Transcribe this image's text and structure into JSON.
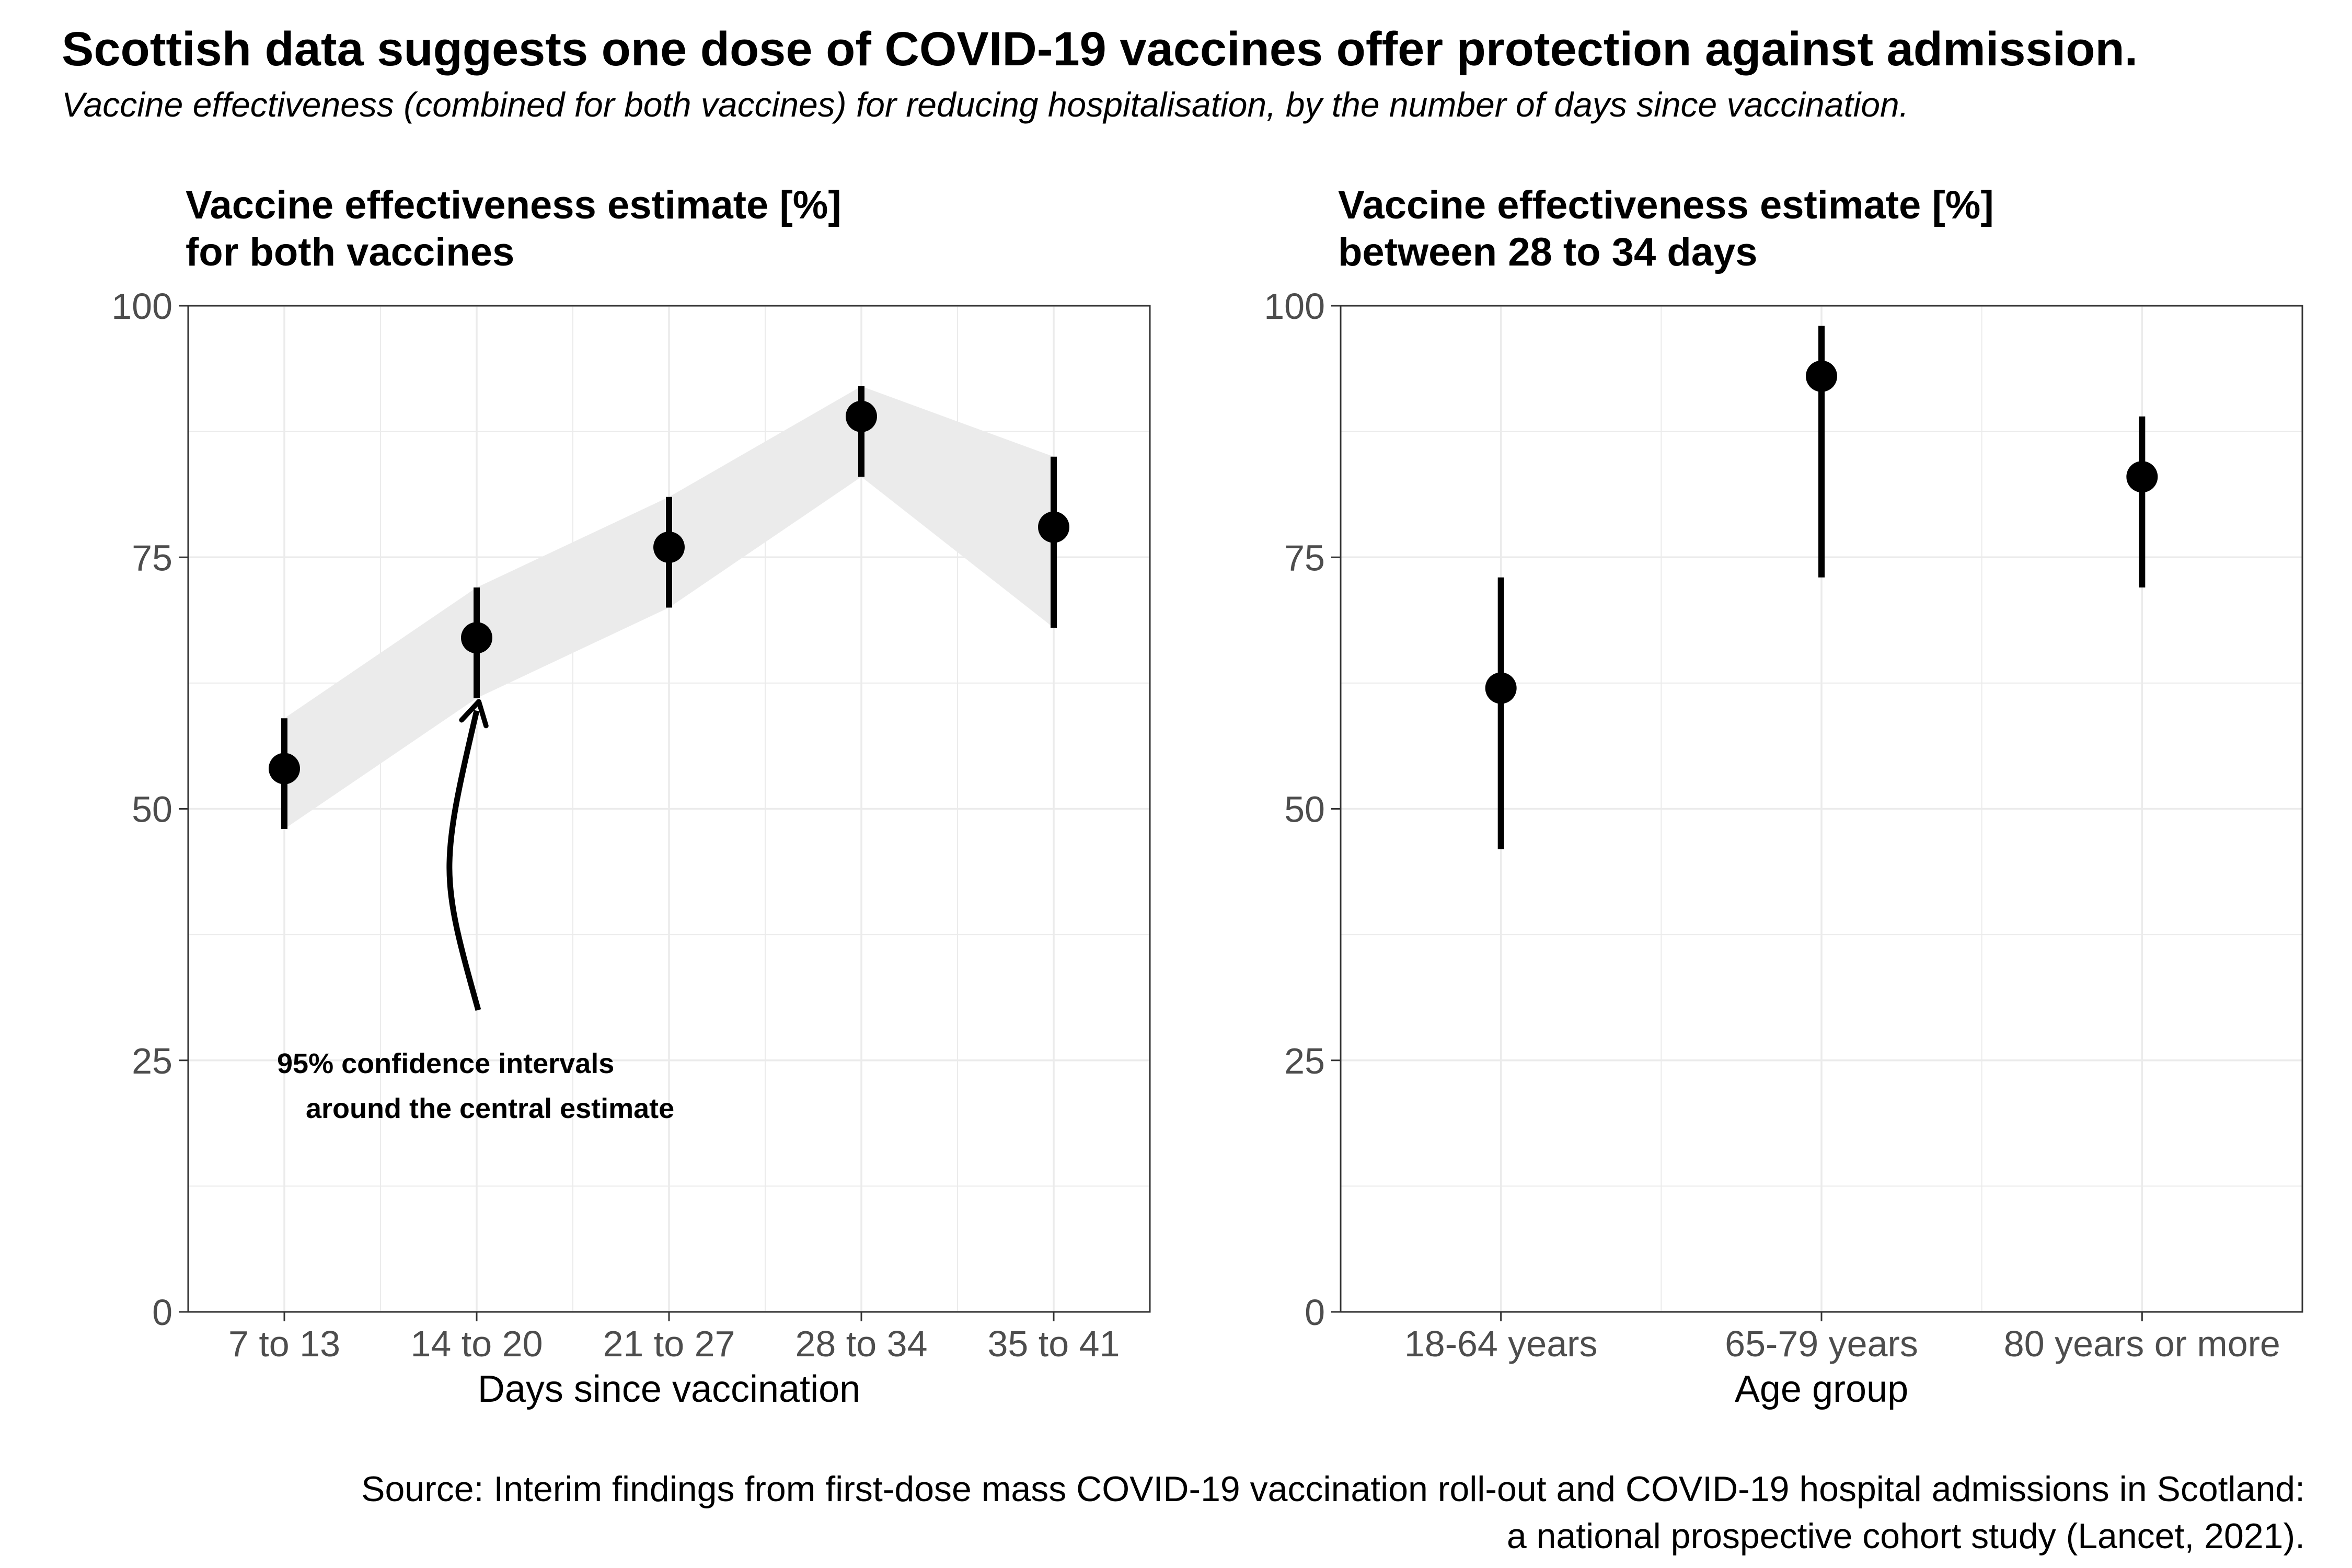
{
  "title": "Scottish data suggests one dose of COVID-19 vaccines offer protection against admission.",
  "subtitle": "Vaccine effectiveness (combined for both vaccines) for reducing hospitalisation, by the number of days since vaccination.",
  "source": {
    "line1": "Source: Interim findings from first-dose mass COVID-19 vaccination roll-out and COVID-19 hospital admissions in Scotland:",
    "line2": "a national prospective cohort study (Lancet, 2021)."
  },
  "chart_data": [
    {
      "type": "scatter",
      "title_lines": [
        "Vaccine effectiveness estimate [%]",
        "for both vaccines"
      ],
      "xlabel": "Days since vaccination",
      "ylabel": "",
      "categories": [
        "7 to 13",
        "14 to 20",
        "21 to 27",
        "28 to 34",
        "35 to 41"
      ],
      "values": [
        54,
        67,
        76,
        89,
        78
      ],
      "lower": [
        48,
        61,
        70,
        83,
        68
      ],
      "upper": [
        59,
        72,
        81,
        92,
        85
      ],
      "ribbon": true,
      "ylim": [
        0,
        100
      ],
      "yticks": [
        0,
        25,
        50,
        75,
        100
      ],
      "grid": true,
      "annotation": {
        "lines": [
          "95% confidence intervals",
          "around the central estimate"
        ],
        "arrow_target_category": "14 to 20"
      },
      "colors": {
        "points": "#000000",
        "ribbon": "#ebebeb",
        "grid": "#ebebeb"
      }
    },
    {
      "type": "scatter",
      "title_lines": [
        "Vaccine effectiveness estimate [%]",
        "between 28 to 34 days"
      ],
      "xlabel": "Age group",
      "ylabel": "",
      "categories": [
        "18-64 years",
        "65-79 years",
        "80 years or more"
      ],
      "values": [
        62,
        93,
        83
      ],
      "lower": [
        46,
        73,
        72
      ],
      "upper": [
        73,
        98,
        89
      ],
      "ribbon": false,
      "ylim": [
        0,
        100
      ],
      "yticks": [
        0,
        25,
        50,
        75,
        100
      ],
      "grid": true,
      "colors": {
        "points": "#000000",
        "grid": "#ebebeb"
      }
    }
  ]
}
